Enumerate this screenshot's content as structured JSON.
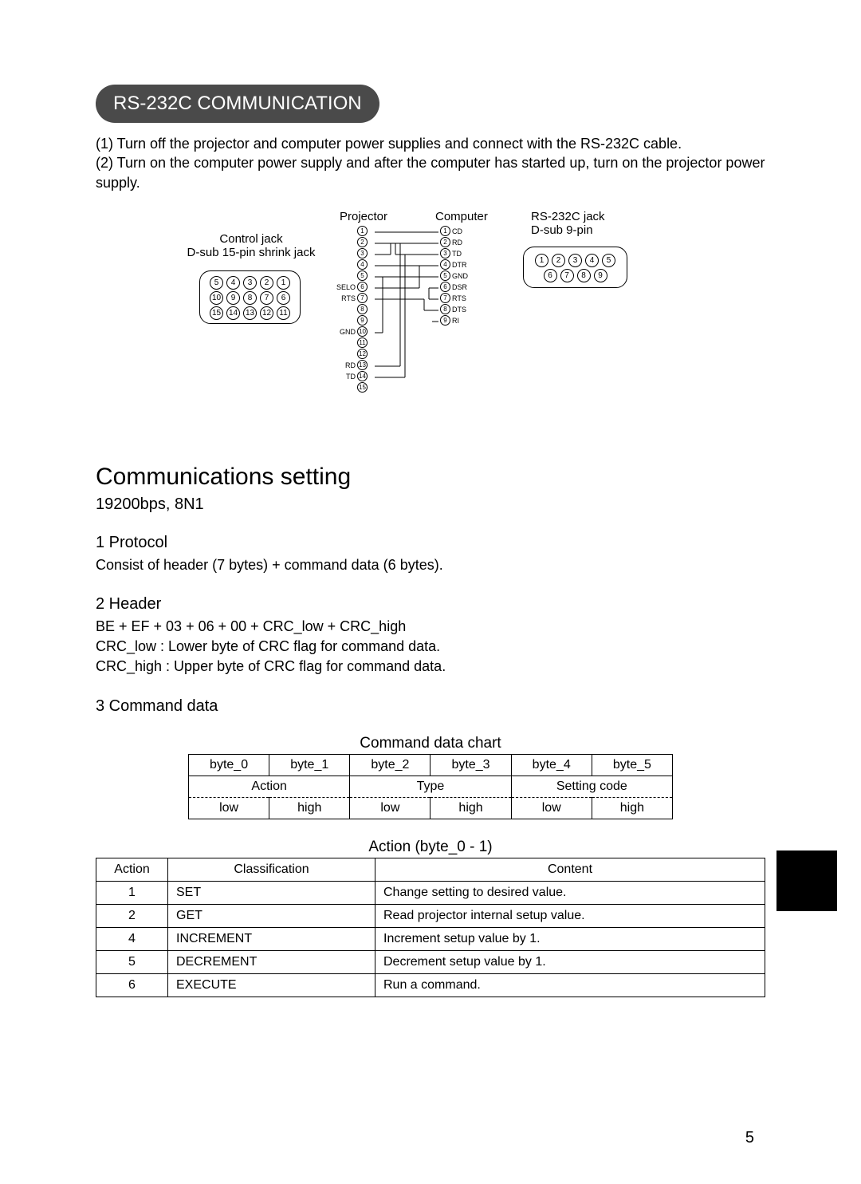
{
  "title_bar": "RS-232C COMMUNICATION",
  "intro": {
    "line1": "(1) Turn off the projector and computer power supplies and connect with the RS-232C cable.",
    "line2": "(2) Turn on the computer power supply and after the computer has started up, turn on the projector power supply."
  },
  "diagram": {
    "control_jack_line1": "Control jack",
    "control_jack_line2": "D-sub 15-pin shrink jack",
    "projector_label": "Projector",
    "computer_label": "Computer",
    "rs232_line1": "RS-232C jack",
    "rs232_line2": "D-sub 9-pin",
    "d15_rows": [
      [
        "⑤",
        "④",
        "③",
        "②",
        "①"
      ],
      [
        "⑩",
        "⑨",
        "⑧",
        "⑦",
        "⑥"
      ],
      [
        "⑮",
        "⑭",
        "⑬",
        "⑫",
        "⑪"
      ]
    ],
    "d9_row1": [
      "①",
      "②",
      "③",
      "④",
      "⑤"
    ],
    "d9_row2": [
      "⑥",
      "⑦",
      "⑧",
      "⑨"
    ],
    "proj_pin_labels_left": [
      "",
      "",
      "",
      "",
      "",
      "SELO",
      "RTS",
      "",
      "",
      "GND",
      "",
      "",
      "RD",
      "TD",
      ""
    ],
    "comp_pin_labels_right": [
      "CD",
      "RD",
      "TD",
      "DTR",
      "GND",
      "DSR",
      "RTS",
      "DTS",
      "RI"
    ]
  },
  "comm_heading": "Communications setting",
  "baud": "19200bps,  8N1",
  "protocol": {
    "title": "1 Protocol",
    "body": "Consist of header (7 bytes) + command data (6 bytes)."
  },
  "header_sec": {
    "title": "2 Header",
    "l1": "BE + EF + 03 + 06 + 00 + CRC_low + CRC_high",
    "l2": "CRC_low : Lower byte of CRC flag for command data.",
    "l3": "CRC_high : Upper byte of CRC flag for command data."
  },
  "cmd_data_title": "3 Command data",
  "chart1": {
    "caption": "Command data chart",
    "headers": [
      "byte_0",
      "byte_1",
      "byte_2",
      "byte_3",
      "byte_4",
      "byte_5"
    ],
    "groups": [
      "Action",
      "Type",
      "Setting code"
    ],
    "lows": [
      "low",
      "high",
      "low",
      "high",
      "low",
      "high"
    ]
  },
  "chart2": {
    "caption": "Action (byte_0 - 1)",
    "headers": [
      "Action",
      "Classification",
      "Content"
    ],
    "rows": [
      [
        "1",
        "SET",
        "Change setting to desired value."
      ],
      [
        "2",
        "GET",
        "Read projector internal setup value."
      ],
      [
        "4",
        "INCREMENT",
        "Increment setup value by 1."
      ],
      [
        "5",
        "DECREMENT",
        "Decrement setup value by 1."
      ],
      [
        "6",
        "EXECUTE",
        "Run a command."
      ]
    ]
  },
  "page_number": "5",
  "colors": {
    "title_bg": "#4a4a4a",
    "title_fg": "#ffffff",
    "text": "#000000"
  }
}
